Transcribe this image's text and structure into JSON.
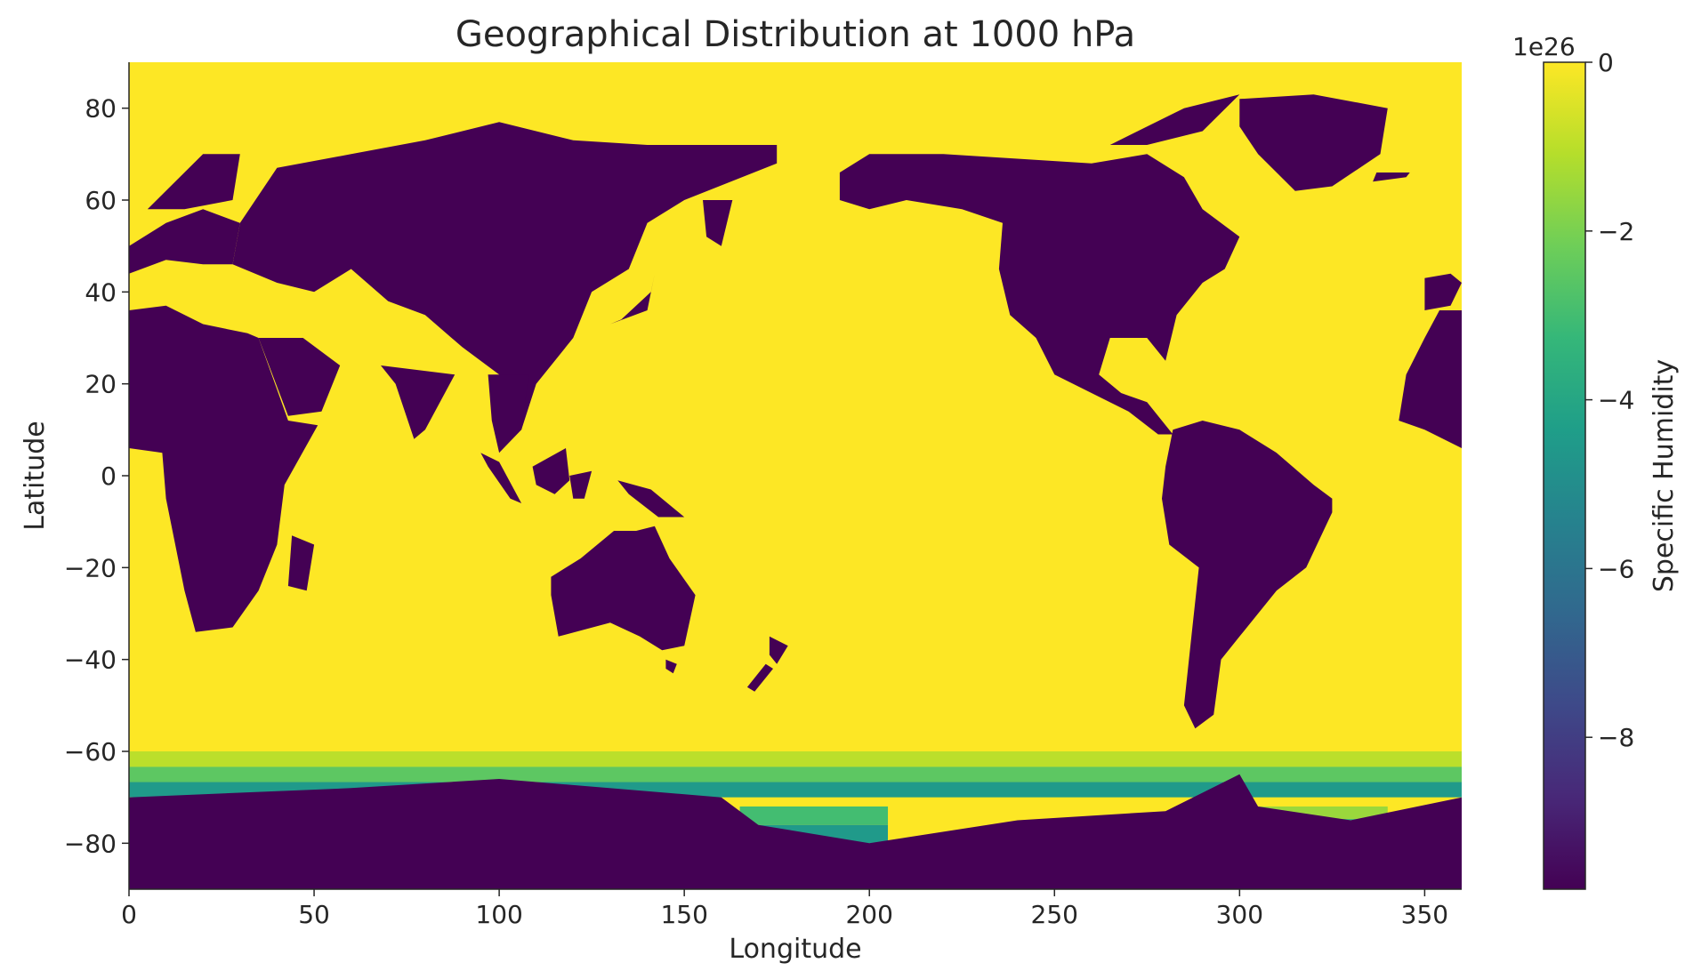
{
  "chart_data": {
    "type": "heatmap",
    "title": "Geographical Distribution at 1000 hPa",
    "xlabel": "Longitude",
    "ylabel": "Latitude",
    "xlim": [
      0,
      360
    ],
    "ylim": [
      -90,
      90
    ],
    "x_ticks": [
      0,
      50,
      100,
      150,
      200,
      250,
      300,
      350
    ],
    "y_ticks": [
      -80,
      -60,
      -40,
      -20,
      0,
      20,
      40,
      60,
      80
    ],
    "grid": false,
    "colormap": "viridis",
    "colorbar": {
      "label": "Specific Humidity",
      "offset_label": "1e26",
      "range": [
        -9.8,
        0
      ],
      "ticks": [
        0,
        -2,
        -4,
        -6,
        -8
      ],
      "colors": [
        "#440154",
        "#482878",
        "#3e4989",
        "#31688e",
        "#26828e",
        "#1f9e89",
        "#35b779",
        "#6ece58",
        "#b5de2b",
        "#fde725"
      ]
    },
    "background_value": 0,
    "land_value": -9.8,
    "land_regions": [
      {
        "name": "Africa",
        "polygon": [
          [
            0,
            36
          ],
          [
            10,
            37
          ],
          [
            20,
            33
          ],
          [
            32,
            31
          ],
          [
            35,
            30
          ],
          [
            43,
            12
          ],
          [
            51,
            11
          ],
          [
            42,
            -2
          ],
          [
            40,
            -15
          ],
          [
            35,
            -25
          ],
          [
            28,
            -33
          ],
          [
            18,
            -34
          ],
          [
            15,
            -25
          ],
          [
            10,
            -5
          ],
          [
            9,
            5
          ],
          [
            0,
            6
          ]
        ]
      },
      {
        "name": "Madagascar",
        "polygon": [
          [
            44,
            -13
          ],
          [
            50,
            -15
          ],
          [
            48,
            -25
          ],
          [
            43,
            -24
          ]
        ]
      },
      {
        "name": "Europe",
        "polygon": [
          [
            0,
            44
          ],
          [
            10,
            47
          ],
          [
            20,
            46
          ],
          [
            28,
            46
          ],
          [
            30,
            55
          ],
          [
            20,
            58
          ],
          [
            10,
            55
          ],
          [
            0,
            50
          ]
        ]
      },
      {
        "name": "Scandinavia",
        "polygon": [
          [
            5,
            58
          ],
          [
            20,
            70
          ],
          [
            30,
            70
          ],
          [
            28,
            60
          ],
          [
            15,
            58
          ]
        ]
      },
      {
        "name": "Arabia",
        "polygon": [
          [
            35,
            30
          ],
          [
            47,
            30
          ],
          [
            57,
            24
          ],
          [
            52,
            14
          ],
          [
            43,
            13
          ]
        ]
      },
      {
        "name": "Asia",
        "polygon": [
          [
            28,
            46
          ],
          [
            40,
            42
          ],
          [
            50,
            40
          ],
          [
            60,
            45
          ],
          [
            70,
            38
          ],
          [
            80,
            35
          ],
          [
            90,
            28
          ],
          [
            100,
            22
          ],
          [
            106,
            10
          ],
          [
            110,
            20
          ],
          [
            120,
            30
          ],
          [
            125,
            40
          ],
          [
            135,
            45
          ],
          [
            140,
            55
          ],
          [
            150,
            60
          ],
          [
            175,
            68
          ],
          [
            175,
            72
          ],
          [
            140,
            72
          ],
          [
            120,
            73
          ],
          [
            100,
            77
          ],
          [
            80,
            73
          ],
          [
            60,
            70
          ],
          [
            40,
            67
          ],
          [
            30,
            55
          ]
        ]
      },
      {
        "name": "India",
        "polygon": [
          [
            68,
            24
          ],
          [
            88,
            22
          ],
          [
            80,
            10
          ],
          [
            77,
            8
          ],
          [
            72,
            20
          ]
        ]
      },
      {
        "name": "Indochina",
        "polygon": [
          [
            97,
            22
          ],
          [
            108,
            22
          ],
          [
            106,
            10
          ],
          [
            100,
            5
          ],
          [
            98,
            12
          ]
        ]
      },
      {
        "name": "Kamchatka",
        "polygon": [
          [
            155,
            60
          ],
          [
            163,
            60
          ],
          [
            160,
            50
          ],
          [
            156,
            52
          ]
        ]
      },
      {
        "name": "Japan",
        "polygon": [
          [
            130,
            33
          ],
          [
            140,
            36
          ],
          [
            142,
            44
          ],
          [
            141,
            40
          ],
          [
            133,
            34
          ]
        ]
      },
      {
        "name": "Borneo",
        "polygon": [
          [
            109,
            2
          ],
          [
            118,
            6
          ],
          [
            119,
            -1
          ],
          [
            115,
            -4
          ],
          [
            110,
            -2
          ]
        ]
      },
      {
        "name": "Sumatra",
        "polygon": [
          [
            95,
            5
          ],
          [
            100,
            3
          ],
          [
            106,
            -6
          ],
          [
            103,
            -5
          ],
          [
            97,
            2
          ]
        ]
      },
      {
        "name": "Sulawesi",
        "polygon": [
          [
            119,
            0
          ],
          [
            125,
            1
          ],
          [
            123,
            -5
          ],
          [
            120,
            -5
          ]
        ]
      },
      {
        "name": "New Guinea",
        "polygon": [
          [
            132,
            -1
          ],
          [
            141,
            -3
          ],
          [
            150,
            -9
          ],
          [
            143,
            -9
          ],
          [
            135,
            -4
          ]
        ]
      },
      {
        "name": "Australia",
        "polygon": [
          [
            114,
            -22
          ],
          [
            122,
            -18
          ],
          [
            131,
            -12
          ],
          [
            137,
            -12
          ],
          [
            142,
            -11
          ],
          [
            146,
            -18
          ],
          [
            153,
            -26
          ],
          [
            150,
            -37
          ],
          [
            144,
            -38
          ],
          [
            138,
            -35
          ],
          [
            130,
            -32
          ],
          [
            116,
            -35
          ],
          [
            114,
            -26
          ]
        ]
      },
      {
        "name": "Tasmania",
        "polygon": [
          [
            145,
            -40
          ],
          [
            148,
            -41
          ],
          [
            147,
            -43
          ],
          [
            145,
            -42
          ]
        ]
      },
      {
        "name": "New Zealand N",
        "polygon": [
          [
            173,
            -35
          ],
          [
            178,
            -37
          ],
          [
            175,
            -41
          ],
          [
            173,
            -39
          ]
        ]
      },
      {
        "name": "New Zealand S",
        "polygon": [
          [
            167,
            -46
          ],
          [
            172,
            -41
          ],
          [
            174,
            -42
          ],
          [
            169,
            -47
          ]
        ]
      },
      {
        "name": "Greenland",
        "polygon": [
          [
            300,
            82
          ],
          [
            320,
            83
          ],
          [
            340,
            80
          ],
          [
            338,
            70
          ],
          [
            325,
            63
          ],
          [
            315,
            62
          ],
          [
            305,
            70
          ],
          [
            300,
            76
          ]
        ]
      },
      {
        "name": "North America",
        "polygon": [
          [
            192,
            66
          ],
          [
            200,
            70
          ],
          [
            220,
            70
          ],
          [
            240,
            69
          ],
          [
            260,
            68
          ],
          [
            275,
            70
          ],
          [
            285,
            65
          ],
          [
            290,
            58
          ],
          [
            300,
            52
          ],
          [
            296,
            45
          ],
          [
            290,
            42
          ],
          [
            283,
            35
          ],
          [
            280,
            25
          ],
          [
            275,
            30
          ],
          [
            265,
            30
          ],
          [
            262,
            22
          ],
          [
            268,
            18
          ],
          [
            275,
            16
          ],
          [
            282,
            9
          ],
          [
            278,
            9
          ],
          [
            270,
            14
          ],
          [
            260,
            18
          ],
          [
            250,
            22
          ],
          [
            245,
            30
          ],
          [
            238,
            35
          ],
          [
            235,
            45
          ],
          [
            236,
            55
          ],
          [
            225,
            58
          ],
          [
            210,
            60
          ],
          [
            200,
            58
          ],
          [
            192,
            60
          ]
        ]
      },
      {
        "name": "Arctic Islands",
        "polygon": [
          [
            265,
            72
          ],
          [
            285,
            80
          ],
          [
            300,
            83
          ],
          [
            290,
            75
          ],
          [
            275,
            72
          ]
        ]
      },
      {
        "name": "South America",
        "polygon": [
          [
            282,
            10
          ],
          [
            290,
            12
          ],
          [
            300,
            10
          ],
          [
            310,
            5
          ],
          [
            320,
            -2
          ],
          [
            325,
            -5
          ],
          [
            325,
            -8
          ],
          [
            318,
            -20
          ],
          [
            310,
            -25
          ],
          [
            300,
            -35
          ],
          [
            295,
            -40
          ],
          [
            293,
            -52
          ],
          [
            288,
            -55
          ],
          [
            285,
            -50
          ],
          [
            287,
            -35
          ],
          [
            289,
            -20
          ],
          [
            281,
            -15
          ],
          [
            279,
            -5
          ],
          [
            280,
            2
          ]
        ]
      },
      {
        "name": "Iceland",
        "polygon": [
          [
            336,
            64
          ],
          [
            345,
            65
          ],
          [
            346,
            66
          ],
          [
            337,
            66
          ]
        ]
      },
      {
        "name": "Iberia",
        "polygon": [
          [
            350,
            36
          ],
          [
            357,
            37
          ],
          [
            360,
            42
          ],
          [
            357,
            44
          ],
          [
            350,
            43
          ]
        ]
      },
      {
        "name": "West Africa",
        "polygon": [
          [
            343,
            12
          ],
          [
            350,
            10
          ],
          [
            360,
            6
          ],
          [
            360,
            36
          ],
          [
            354,
            36
          ],
          [
            350,
            30
          ],
          [
            345,
            22
          ]
        ]
      },
      {
        "name": "Antarctica",
        "polygon": [
          [
            0,
            -70
          ],
          [
            60,
            -68
          ],
          [
            100,
            -66
          ],
          [
            160,
            -70
          ],
          [
            170,
            -76
          ],
          [
            200,
            -80
          ],
          [
            240,
            -75
          ],
          [
            280,
            -73
          ],
          [
            300,
            -65
          ],
          [
            305,
            -72
          ],
          [
            330,
            -75
          ],
          [
            360,
            -70
          ],
          [
            360,
            -90
          ],
          [
            0,
            -90
          ]
        ]
      }
    ],
    "transition_bands": [
      {
        "name": "Southern Ocean band",
        "lat_range": [
          -70,
          -60
        ],
        "lon_range": [
          0,
          360
        ],
        "values": [
          -4.5,
          -2.5,
          -1.0
        ]
      },
      {
        "name": "Ross Sea shelf",
        "lat_range": [
          -84,
          -72
        ],
        "lon_range": [
          165,
          205
        ],
        "values": [
          -5.5,
          -4.5,
          -3.0
        ]
      },
      {
        "name": "Weddell Sea shelf",
        "lat_range": [
          -80,
          -72
        ],
        "lon_range": [
          300,
          340
        ],
        "values": [
          -4.5,
          -3.0,
          -1.5
        ]
      }
    ]
  }
}
